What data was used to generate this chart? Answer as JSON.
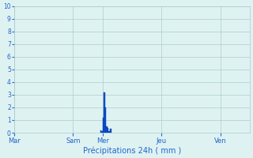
{
  "xlabel": "Précipitations 24h ( mm )",
  "background_color": "#dff2f2",
  "bar_color": "#1155cc",
  "bar_color_edge": "#0033aa",
  "ylim": [
    0,
    10
  ],
  "yticks": [
    0,
    1,
    2,
    3,
    4,
    5,
    6,
    7,
    8,
    9,
    10
  ],
  "x_day_labels": [
    "Mar",
    "Sam",
    "Mer",
    "Jeu",
    "Ven"
  ],
  "x_day_positions": [
    0,
    48,
    72,
    120,
    168
  ],
  "xlim": [
    0,
    192
  ],
  "bar_positions": [
    70,
    71,
    72,
    73,
    74,
    75,
    76,
    77,
    78
  ],
  "bar_values": [
    0.2,
    0.1,
    1.2,
    3.2,
    2.0,
    0.5,
    0.35,
    0.15,
    0.3
  ],
  "grid_color": "#aacccc",
  "tick_label_color": "#2266cc",
  "axis_label_color": "#2266cc"
}
